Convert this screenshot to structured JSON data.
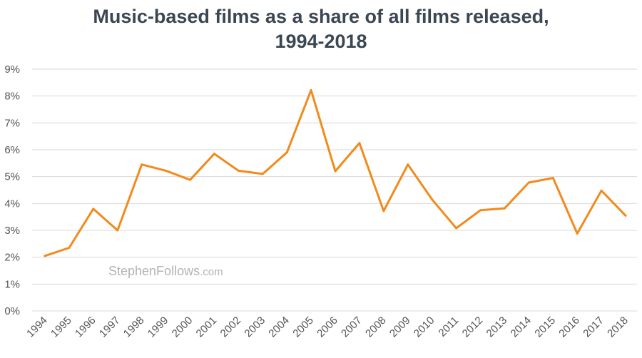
{
  "chart_data": {
    "type": "line",
    "title_line1": "Music-based films as a share of all films released,",
    "title_line2": "1994-2018",
    "xlabel": "",
    "ylabel": "",
    "ylim": [
      0,
      9
    ],
    "y_ticks": [
      "0%",
      "1%",
      "2%",
      "3%",
      "4%",
      "5%",
      "6%",
      "7%",
      "8%",
      "9%"
    ],
    "grid": true,
    "categories": [
      "1994",
      "1995",
      "1996",
      "1997",
      "1998",
      "1999",
      "2000",
      "2001",
      "2002",
      "2003",
      "2004",
      "2005",
      "2006",
      "2007",
      "2008",
      "2009",
      "2010",
      "2011",
      "2012",
      "2013",
      "2014",
      "2015",
      "2016",
      "2017",
      "2018"
    ],
    "series": [
      {
        "values": [
          2.05,
          2.35,
          3.8,
          3.0,
          5.45,
          5.22,
          4.88,
          5.85,
          5.22,
          5.1,
          5.9,
          8.22,
          5.2,
          6.25,
          3.72,
          5.45,
          4.15,
          3.08,
          3.75,
          3.82,
          4.78,
          4.95,
          2.88,
          4.48,
          3.55
        ],
        "color": "#f28a1c"
      }
    ],
    "watermark_main": "StephenFollows",
    "watermark_suffix": ".com"
  },
  "colors": {
    "line": "#f28a1c",
    "grid": "#d9d9d9",
    "title": "#3b4752",
    "tick": "#555555",
    "watermark": "#b3b3b3"
  }
}
